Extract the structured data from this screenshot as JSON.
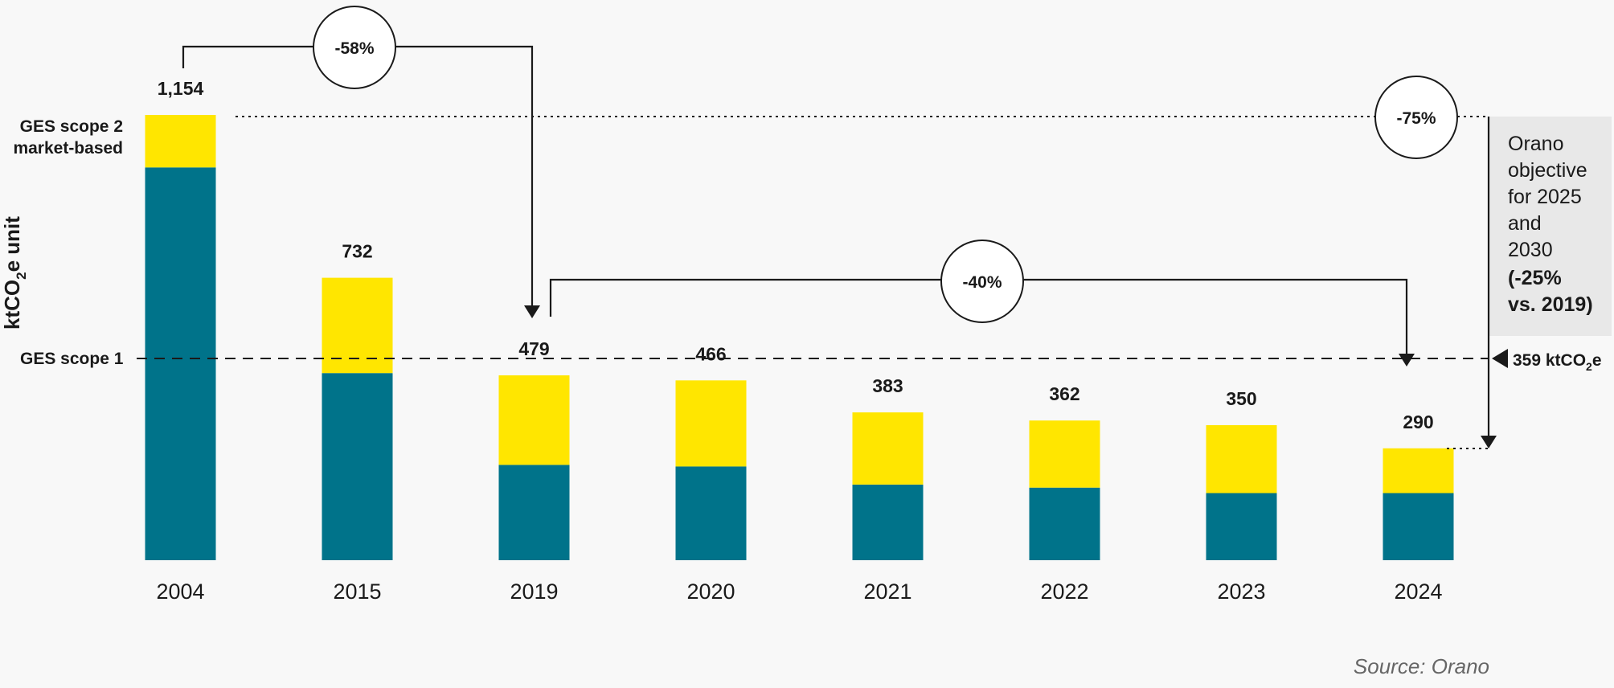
{
  "colors": {
    "background": "#f8f8f8",
    "scope1": "#00738a",
    "scope2": "#ffe600",
    "text": "#1a1a1a",
    "objective_box": "#e8e8e8"
  },
  "chart_data": {
    "type": "bar",
    "stacked": true,
    "categories": [
      "2004",
      "2015",
      "2019",
      "2020",
      "2021",
      "2022",
      "2023",
      "2024"
    ],
    "totals": [
      1154,
      732,
      479,
      466,
      383,
      362,
      350,
      290
    ],
    "total_labels": [
      "1,154",
      "732",
      "479",
      "466",
      "383",
      "362",
      "350",
      "290"
    ],
    "series": [
      {
        "name": "GES scope 1",
        "values": [
          1018,
          485,
          247,
          243,
          196,
          188,
          174,
          174
        ]
      },
      {
        "name": "GES scope 2 market-based",
        "values": [
          136,
          247,
          232,
          223,
          187,
          174,
          176,
          116
        ]
      }
    ],
    "ylabel_parts": [
      "ktCO",
      "2",
      "e unit"
    ],
    "ylim": [
      0,
      1154
    ],
    "reference_line": {
      "value": 359,
      "label_parts": [
        "359 ktCO",
        "2",
        "e"
      ]
    },
    "annotations": [
      {
        "label": "-58%",
        "from": "2004",
        "to": "2019"
      },
      {
        "label": "-40%",
        "from": "2019",
        "to": "2024"
      },
      {
        "label": "-75%",
        "from": "2004",
        "to": "2024"
      }
    ],
    "objective_box": {
      "lines": [
        "Orano",
        "objective",
        "for 2025",
        "and",
        "2030"
      ],
      "bold_lines": [
        "(-25%",
        "vs. 2019)"
      ]
    },
    "source": "Source: Orano"
  }
}
